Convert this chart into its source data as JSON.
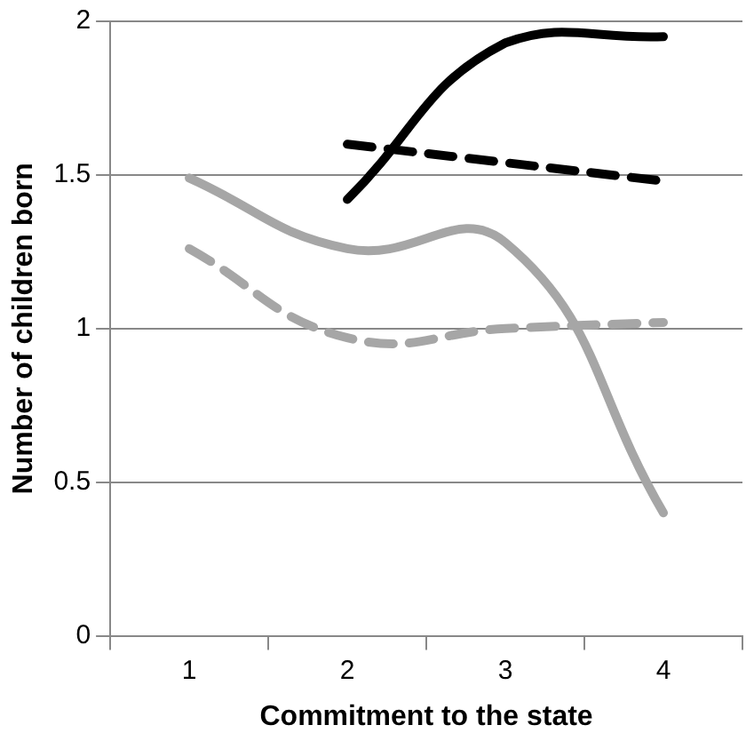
{
  "chart_data": {
    "type": "line",
    "xlabel": "Commitment to the state",
    "ylabel": "Number of children born",
    "categories": [
      "1",
      "2",
      "3",
      "4"
    ],
    "ylim": [
      0,
      2
    ],
    "yticks": [
      0,
      0.5,
      1,
      1.5,
      2
    ],
    "grid": "y",
    "marker": "none",
    "series": [
      {
        "color": "#a6a6a6",
        "line_style": "solid",
        "values": [
          1.49,
          1.26,
          1.28,
          0.4
        ]
      },
      {
        "color": "#a6a6a6",
        "line_style": "dashed",
        "values": [
          1.26,
          0.97,
          1.0,
          1.02
        ]
      },
      {
        "color": "#000000",
        "line_style": "solid",
        "values": [
          null,
          1.42,
          1.93,
          1.95
        ]
      },
      {
        "color": "#000000",
        "line_style": "dashed",
        "values": [
          null,
          1.6,
          1.54,
          1.48
        ]
      }
    ]
  }
}
